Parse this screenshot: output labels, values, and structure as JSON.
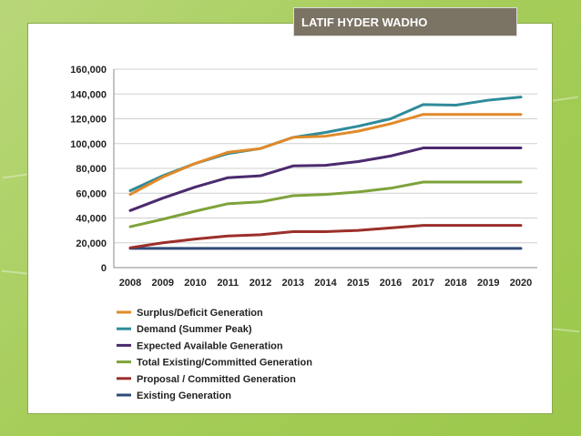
{
  "slide": {
    "author": "LATIF HYDER WADHO"
  },
  "chart_data": {
    "type": "line",
    "title": "",
    "xlabel": "",
    "ylabel": "",
    "ylim": [
      0,
      160000
    ],
    "yticks": [
      "160,000",
      "140,000",
      "120,000",
      "100,000",
      "80,000",
      "60,000",
      "40,000",
      "20,000",
      "0"
    ],
    "yticks_values": [
      160000,
      140000,
      120000,
      100000,
      80000,
      60000,
      40000,
      20000,
      0
    ],
    "categories": [
      "2008",
      "2009",
      "2010",
      "2011",
      "2012",
      "2013",
      "2014",
      "2015",
      "2016",
      "2017",
      "2018",
      "2019",
      "2020"
    ],
    "series": [
      {
        "name": "Surplus/Deficit Generation",
        "color": "#e08a2a",
        "values": [
          59000,
          73000,
          84000,
          93000,
          96000,
          105000,
          106000,
          110000,
          116000,
          123500,
          123500,
          123500,
          123500
        ]
      },
      {
        "name": "Demand (Summer Peak)",
        "color": "#2e8b9a",
        "values": [
          62000,
          74000,
          84000,
          92000,
          96000,
          105000,
          109000,
          114000,
          120000,
          131500,
          131000,
          135000,
          137500
        ]
      },
      {
        "name": "Expected Available Generation",
        "color": "#4b2a6e",
        "values": [
          46000,
          56000,
          65000,
          72500,
          74000,
          82000,
          82500,
          85500,
          90000,
          96500,
          96500,
          96500,
          96500
        ]
      },
      {
        "name": "Total Existing/Committed Generation",
        "color": "#7ea33a",
        "values": [
          33000,
          39000,
          45500,
          51500,
          53000,
          58000,
          59000,
          61000,
          64000,
          69000,
          69000,
          69000,
          69000
        ]
      },
      {
        "name": "Proposal / Committed  Generation",
        "color": "#9c2f2a",
        "values": [
          16000,
          20000,
          23000,
          25500,
          26500,
          29000,
          29000,
          30000,
          32000,
          34000,
          34000,
          34000,
          34000
        ]
      },
      {
        "name": "Existing Generation",
        "color": "#2f4a78",
        "values": [
          15500,
          15500,
          15500,
          15500,
          15500,
          15500,
          15500,
          15500,
          15500,
          15500,
          15500,
          15500,
          15500
        ]
      }
    ]
  }
}
